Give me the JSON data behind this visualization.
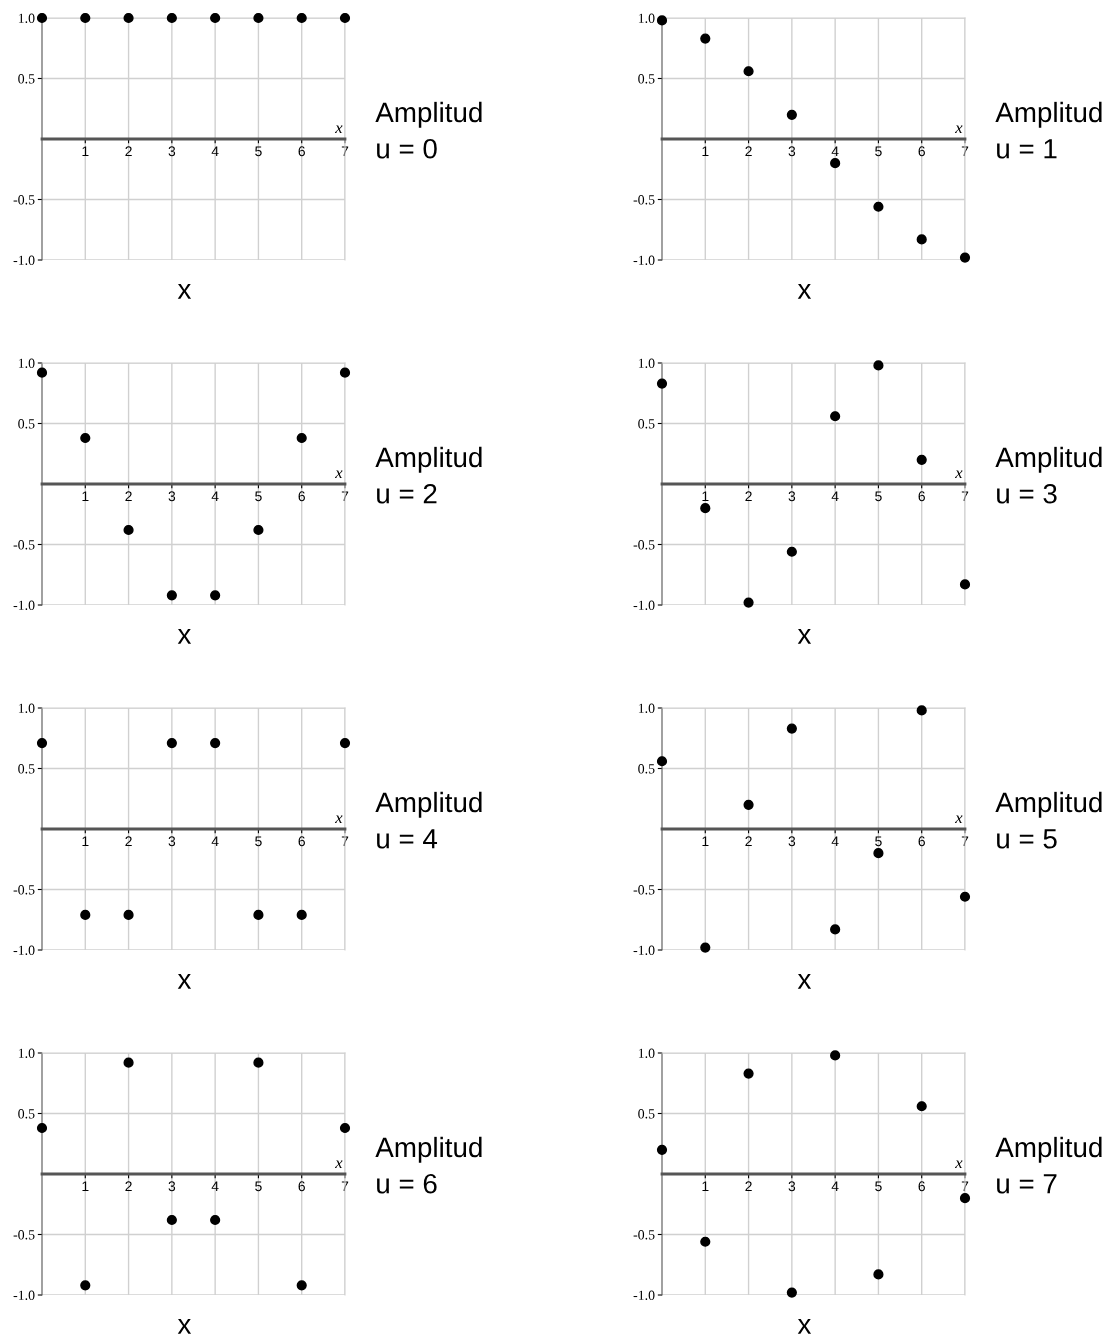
{
  "chart_data": [
    {
      "type": "scatter",
      "xlabel": "x",
      "x": [
        0,
        1,
        2,
        3,
        4,
        5,
        6,
        7
      ],
      "xlim": [
        0,
        7
      ],
      "xticks": [
        1,
        2,
        3,
        4,
        5,
        6,
        7
      ],
      "ylim": [
        -1,
        1
      ],
      "yticks": [
        {
          "value": -1,
          "label": "-1.0"
        },
        {
          "value": -0.5,
          "label": "-0.5"
        },
        {
          "value": 0.5,
          "label": "0.5"
        },
        {
          "value": 1,
          "label": "1.0"
        }
      ],
      "grid": true,
      "marker": "circle",
      "series": [
        {
          "color": "#000000",
          "values": [
            1.0,
            1.0,
            1.0,
            1.0,
            1.0,
            1.0,
            1.0,
            1.0
          ]
        }
      ],
      "annotations": [
        "x",
        "Amplitud",
        "u = 0"
      ]
    },
    {
      "type": "scatter",
      "xlabel": "x",
      "x": [
        0,
        1,
        2,
        3,
        4,
        5,
        6,
        7
      ],
      "xlim": [
        0,
        7
      ],
      "xticks": [
        1,
        2,
        3,
        4,
        5,
        6,
        7
      ],
      "ylim": [
        -1,
        1
      ],
      "yticks": [
        {
          "value": -1,
          "label": "-1.0"
        },
        {
          "value": -0.5,
          "label": "-0.5"
        },
        {
          "value": 0.5,
          "label": "0.5"
        },
        {
          "value": 1,
          "label": "1.0"
        }
      ],
      "grid": true,
      "marker": "circle",
      "series": [
        {
          "color": "#000000",
          "values": [
            0.98,
            0.83,
            0.56,
            0.2,
            -0.2,
            -0.56,
            -0.83,
            -0.98
          ]
        }
      ],
      "annotations": [
        "x",
        "Amplitud",
        "u = 1"
      ]
    },
    {
      "type": "scatter",
      "xlabel": "x",
      "x": [
        0,
        1,
        2,
        3,
        4,
        5,
        6,
        7
      ],
      "xlim": [
        0,
        7
      ],
      "xticks": [
        1,
        2,
        3,
        4,
        5,
        6,
        7
      ],
      "ylim": [
        -1,
        1
      ],
      "yticks": [
        {
          "value": -1,
          "label": "-1.0"
        },
        {
          "value": -0.5,
          "label": "-0.5"
        },
        {
          "value": 0.5,
          "label": "0.5"
        },
        {
          "value": 1,
          "label": "1.0"
        }
      ],
      "grid": true,
      "marker": "circle",
      "series": [
        {
          "color": "#000000",
          "values": [
            0.92,
            0.38,
            -0.38,
            -0.92,
            -0.92,
            -0.38,
            0.38,
            0.92
          ]
        }
      ],
      "annotations": [
        "x",
        "Amplitud",
        "u = 2"
      ]
    },
    {
      "type": "scatter",
      "xlabel": "x",
      "x": [
        0,
        1,
        2,
        3,
        4,
        5,
        6,
        7
      ],
      "xlim": [
        0,
        7
      ],
      "xticks": [
        1,
        2,
        3,
        4,
        5,
        6,
        7
      ],
      "ylim": [
        -1,
        1
      ],
      "yticks": [
        {
          "value": -1,
          "label": "-1.0"
        },
        {
          "value": -0.5,
          "label": "-0.5"
        },
        {
          "value": 0.5,
          "label": "0.5"
        },
        {
          "value": 1,
          "label": "1.0"
        }
      ],
      "grid": true,
      "marker": "circle",
      "series": [
        {
          "color": "#000000",
          "values": [
            0.83,
            -0.2,
            -0.98,
            -0.56,
            0.56,
            0.98,
            0.2,
            -0.83
          ]
        }
      ],
      "annotations": [
        "x",
        "Amplitud",
        "u = 3"
      ]
    },
    {
      "type": "scatter",
      "xlabel": "x",
      "x": [
        0,
        1,
        2,
        3,
        4,
        5,
        6,
        7
      ],
      "xlim": [
        0,
        7
      ],
      "xticks": [
        1,
        2,
        3,
        4,
        5,
        6,
        7
      ],
      "ylim": [
        -1,
        1
      ],
      "yticks": [
        {
          "value": -1,
          "label": "-1.0"
        },
        {
          "value": -0.5,
          "label": "-0.5"
        },
        {
          "value": 0.5,
          "label": "0.5"
        },
        {
          "value": 1,
          "label": "1.0"
        }
      ],
      "grid": true,
      "marker": "circle",
      "series": [
        {
          "color": "#000000",
          "values": [
            0.71,
            -0.71,
            -0.71,
            0.71,
            0.71,
            -0.71,
            -0.71,
            0.71
          ]
        }
      ],
      "annotations": [
        "x",
        "Amplitud",
        "u = 4"
      ]
    },
    {
      "type": "scatter",
      "xlabel": "x",
      "x": [
        0,
        1,
        2,
        3,
        4,
        5,
        6,
        7
      ],
      "xlim": [
        0,
        7
      ],
      "xticks": [
        1,
        2,
        3,
        4,
        5,
        6,
        7
      ],
      "ylim": [
        -1,
        1
      ],
      "yticks": [
        {
          "value": -1,
          "label": "-1.0"
        },
        {
          "value": -0.5,
          "label": "-0.5"
        },
        {
          "value": 0.5,
          "label": "0.5"
        },
        {
          "value": 1,
          "label": "1.0"
        }
      ],
      "grid": true,
      "marker": "circle",
      "series": [
        {
          "color": "#000000",
          "values": [
            0.56,
            -0.98,
            0.2,
            0.83,
            -0.83,
            -0.2,
            0.98,
            -0.56
          ]
        }
      ],
      "annotations": [
        "x",
        "Amplitud",
        "u = 5"
      ]
    },
    {
      "type": "scatter",
      "xlabel": "x",
      "x": [
        0,
        1,
        2,
        3,
        4,
        5,
        6,
        7
      ],
      "xlim": [
        0,
        7
      ],
      "xticks": [
        1,
        2,
        3,
        4,
        5,
        6,
        7
      ],
      "ylim": [
        -1,
        1
      ],
      "yticks": [
        {
          "value": -1,
          "label": "-1.0"
        },
        {
          "value": -0.5,
          "label": "-0.5"
        },
        {
          "value": 0.5,
          "label": "0.5"
        },
        {
          "value": 1,
          "label": "1.0"
        }
      ],
      "grid": true,
      "marker": "circle",
      "series": [
        {
          "color": "#000000",
          "values": [
            0.38,
            -0.92,
            0.92,
            -0.38,
            -0.38,
            0.92,
            -0.92,
            0.38
          ]
        }
      ],
      "annotations": [
        "x",
        "Amplitud",
        "u = 6"
      ]
    },
    {
      "type": "scatter",
      "xlabel": "x",
      "x": [
        0,
        1,
        2,
        3,
        4,
        5,
        6,
        7
      ],
      "xlim": [
        0,
        7
      ],
      "xticks": [
        1,
        2,
        3,
        4,
        5,
        6,
        7
      ],
      "ylim": [
        -1,
        1
      ],
      "yticks": [
        {
          "value": -1,
          "label": "-1.0"
        },
        {
          "value": -0.5,
          "label": "-0.5"
        },
        {
          "value": 0.5,
          "label": "0.5"
        },
        {
          "value": 1,
          "label": "1.0"
        }
      ],
      "grid": true,
      "marker": "circle",
      "series": [
        {
          "color": "#000000",
          "values": [
            0.2,
            -0.56,
            0.83,
            -0.98,
            0.98,
            -0.83,
            0.56,
            -0.2
          ]
        }
      ],
      "annotations": [
        "x",
        "Amplitud",
        "u = 7"
      ]
    }
  ]
}
